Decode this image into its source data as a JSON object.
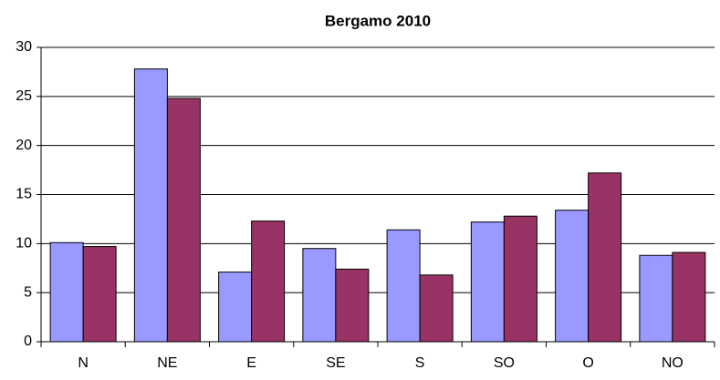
{
  "chart_data": {
    "type": "bar",
    "title": "Bergamo 2010",
    "categories": [
      "N",
      "NE",
      "E",
      "SE",
      "S",
      "SO",
      "O",
      "NO"
    ],
    "series": [
      {
        "color": "#9999ff",
        "values": [
          10.1,
          27.8,
          7.1,
          9.5,
          11.4,
          12.2,
          13.4,
          8.8
        ]
      },
      {
        "color": "#993366",
        "values": [
          9.7,
          24.8,
          12.3,
          7.4,
          6.8,
          12.8,
          17.2,
          9.1
        ]
      }
    ],
    "ylim": [
      0,
      30
    ],
    "yticks": [
      0,
      5,
      10,
      15,
      20,
      25,
      30
    ],
    "grid": true
  }
}
